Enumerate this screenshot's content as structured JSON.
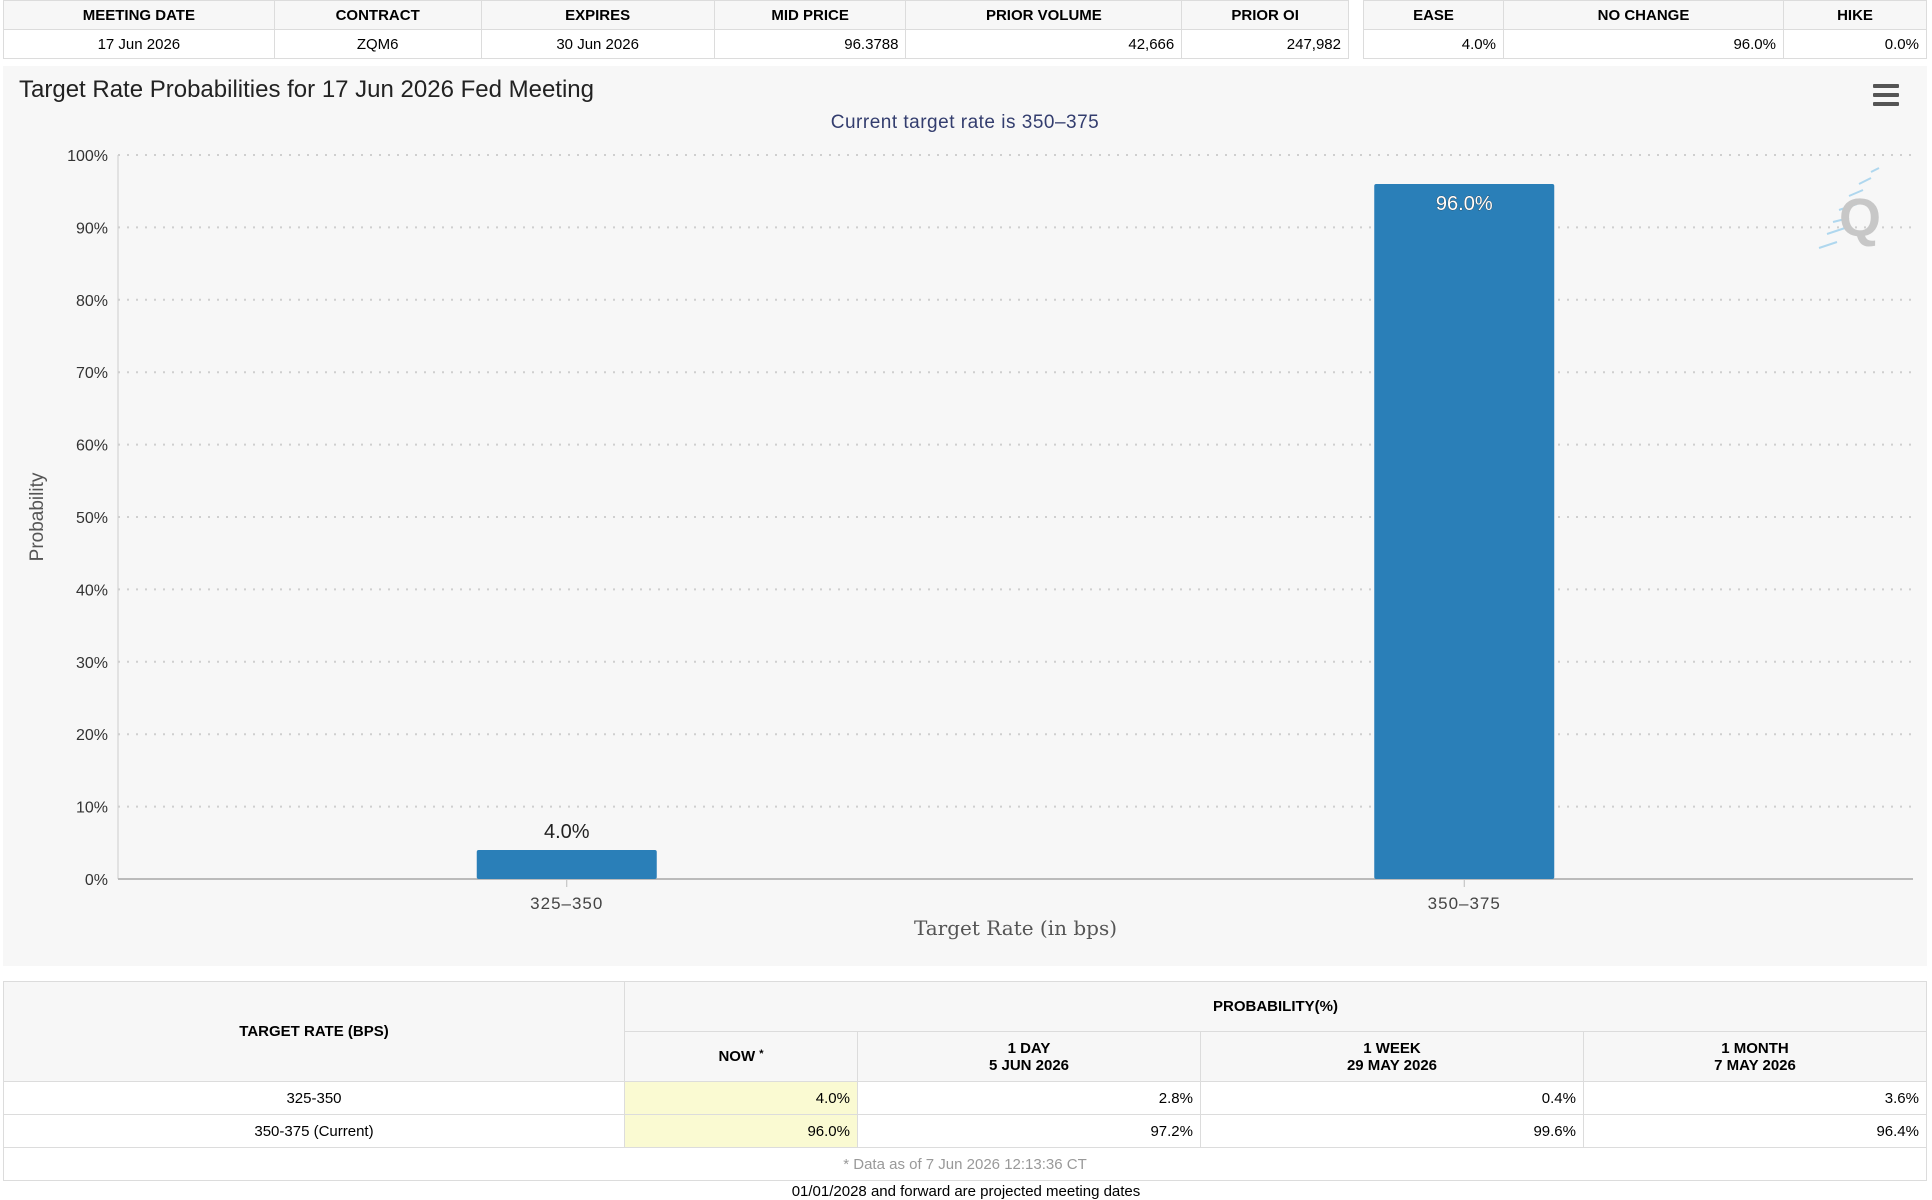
{
  "contract_table": {
    "headers": [
      "MEETING DATE",
      "CONTRACT",
      "EXPIRES",
      "MID PRICE",
      "PRIOR VOLUME",
      "PRIOR OI"
    ],
    "row": [
      "17 Jun 2026",
      "ZQM6",
      "30 Jun 2026",
      "96.3788",
      "42,666",
      "247,982"
    ]
  },
  "summary_table": {
    "headers": [
      "EASE",
      "NO CHANGE",
      "HIKE"
    ],
    "row": [
      "4.0%",
      "96.0%",
      "0.0%"
    ]
  },
  "chart": {
    "menu_icon": "hamburger-menu-icon",
    "watermark_icon": "q-logo-icon",
    "bar_color": "#2a7fb8"
  },
  "chart_data": {
    "type": "bar",
    "title": "Target Rate Probabilities for 17 Jun 2026 Fed Meeting",
    "subtitle": "Current target rate is 350–375",
    "xlabel": "Target Rate (in bps)",
    "ylabel": "Probability",
    "categories": [
      "325–350",
      "350–375"
    ],
    "values": [
      4.0,
      96.0
    ],
    "data_labels": [
      "4.0%",
      "96.0%"
    ],
    "ylim": [
      0,
      100
    ],
    "yticks": [
      "0%",
      "10%",
      "20%",
      "30%",
      "40%",
      "50%",
      "60%",
      "70%",
      "80%",
      "90%",
      "100%"
    ],
    "grid": true
  },
  "probability_table": {
    "rate_header": "TARGET RATE (BPS)",
    "group_header": "PROBABILITY(%)",
    "columns": [
      {
        "label": "NOW",
        "mark": "*",
        "date": ""
      },
      {
        "label": "1 DAY",
        "date": "5 JUN 2026"
      },
      {
        "label": "1 WEEK",
        "date": "29 MAY 2026"
      },
      {
        "label": "1 MONTH",
        "date": "7 MAY 2026"
      }
    ],
    "rows": [
      {
        "rate": "325-350",
        "values": [
          "4.0%",
          "2.8%",
          "0.4%",
          "3.6%"
        ]
      },
      {
        "rate": "350-375 (Current)",
        "values": [
          "96.0%",
          "97.2%",
          "99.6%",
          "96.4%"
        ]
      }
    ],
    "footnote": "* Data as of 7 Jun 2026 12:13:36 CT"
  },
  "projected_note": "01/01/2028 and forward are projected meeting dates"
}
